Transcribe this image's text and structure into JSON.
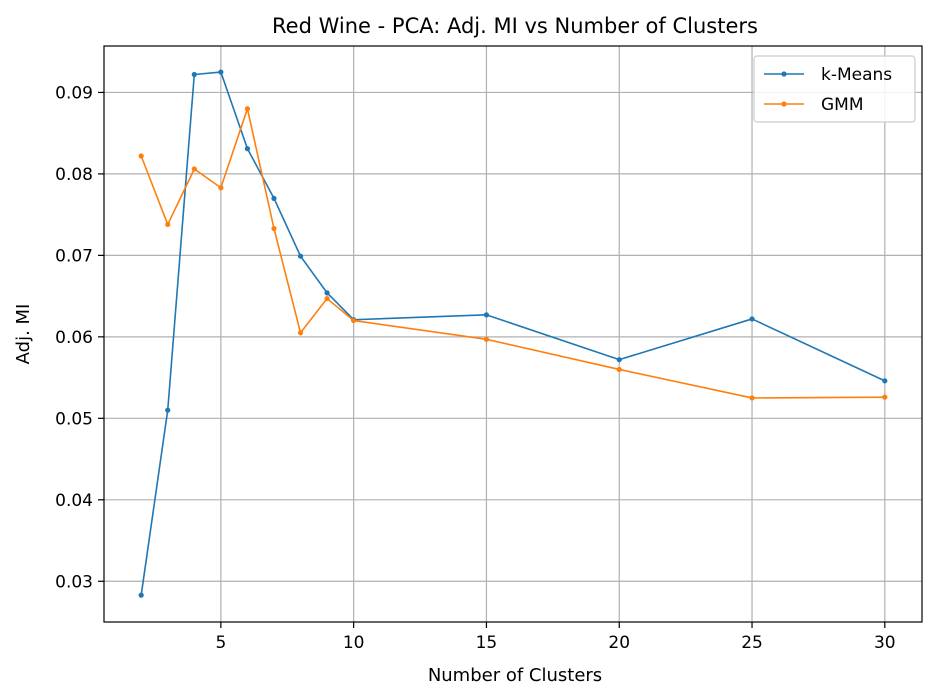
{
  "chart_data": {
    "type": "line",
    "title": "Red Wine - PCA: Adj. MI vs Number of Clusters",
    "xlabel": "Number of Clusters",
    "ylabel": "Adj. MI",
    "xlim": [
      0.6,
      31.4
    ],
    "ylim": [
      0.025,
      0.0957
    ],
    "xticks": [
      5,
      10,
      15,
      20,
      25,
      30
    ],
    "yticks": [
      0.03,
      0.04,
      0.05,
      0.06,
      0.07,
      0.08,
      0.09
    ],
    "xtick_labels": [
      "5",
      "10",
      "15",
      "20",
      "25",
      "30"
    ],
    "ytick_labels": [
      "0.03",
      "0.04",
      "0.05",
      "0.06",
      "0.07",
      "0.08",
      "0.09"
    ],
    "grid": true,
    "legend_position": "top-right",
    "series": [
      {
        "name": "k-Means",
        "color": "#1f77b4",
        "x": [
          2,
          3,
          4,
          5,
          6,
          7,
          8,
          9,
          10,
          15,
          20,
          25,
          30
        ],
        "y": [
          0.0283,
          0.051,
          0.0922,
          0.0925,
          0.0831,
          0.077,
          0.0699,
          0.0654,
          0.0621,
          0.0627,
          0.0572,
          0.0622,
          0.0546
        ]
      },
      {
        "name": "GMM",
        "color": "#ff7f0e",
        "x": [
          2,
          3,
          4,
          5,
          6,
          7,
          8,
          9,
          10,
          15,
          20,
          25,
          30
        ],
        "y": [
          0.0822,
          0.0738,
          0.0806,
          0.0783,
          0.088,
          0.0733,
          0.0605,
          0.0647,
          0.062,
          0.0597,
          0.056,
          0.0525,
          0.0526
        ]
      }
    ]
  }
}
